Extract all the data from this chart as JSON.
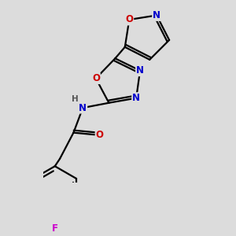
{
  "bg_color": "#dcdcdc",
  "bond_color": "#000000",
  "bond_width": 1.6,
  "atom_colors": {
    "N": "#0000cc",
    "O": "#cc0000",
    "F": "#cc00cc",
    "C": "#000000",
    "H": "#555555"
  },
  "font_size": 8.5
}
